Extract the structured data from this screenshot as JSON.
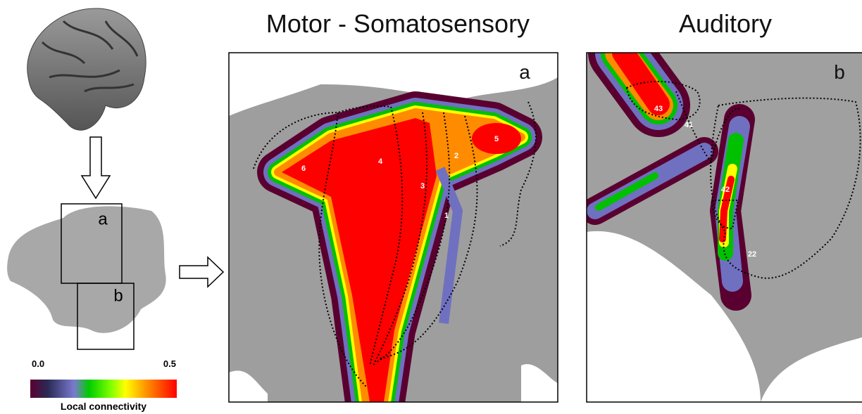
{
  "inset": {
    "box_labels": [
      "a",
      "b"
    ]
  },
  "colorbar": {
    "min_label": "0.0",
    "max_label": "0.5",
    "title": "Local connectivity"
  },
  "panels": [
    {
      "title": "Motor - Somatosensory",
      "letter": "a",
      "areas": [
        "6",
        "4",
        "3",
        "2",
        "1",
        "5"
      ]
    },
    {
      "title": "Auditory",
      "letter": "b",
      "areas": [
        "43",
        "41",
        "42",
        "22"
      ]
    }
  ]
}
